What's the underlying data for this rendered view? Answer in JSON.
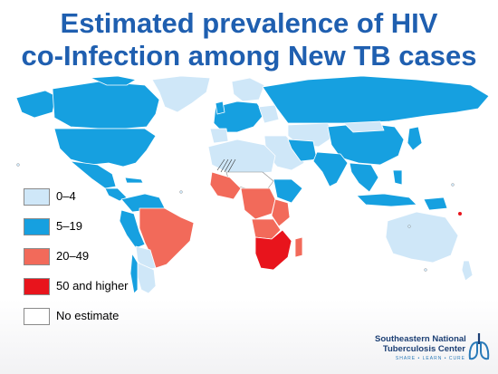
{
  "title": {
    "line1": "Estimated prevalence of HIV",
    "line2": "co-Infection among New TB cases"
  },
  "legend": [
    {
      "label": "0–4",
      "color": "#cfe7f8"
    },
    {
      "label": "5–19",
      "color": "#16a0e0"
    },
    {
      "label": "20–49",
      "color": "#f26a5a"
    },
    {
      "label": "50 and higher",
      "color": "#e8141c"
    },
    {
      "label": "No estimate",
      "color": "#ffffff"
    }
  ],
  "colors": {
    "light_blue": "#cfe7f8",
    "mid_blue": "#16a0e0",
    "salmon": "#f26a5a",
    "red": "#e8141c",
    "title_blue": "#1f5fb0"
  },
  "logo": {
    "name_line1": "Southeastern National",
    "name_line2": "Tuberculosis Center",
    "tagline": "SHARE • LEARN • CURE",
    "icon": "lungs-icon"
  }
}
